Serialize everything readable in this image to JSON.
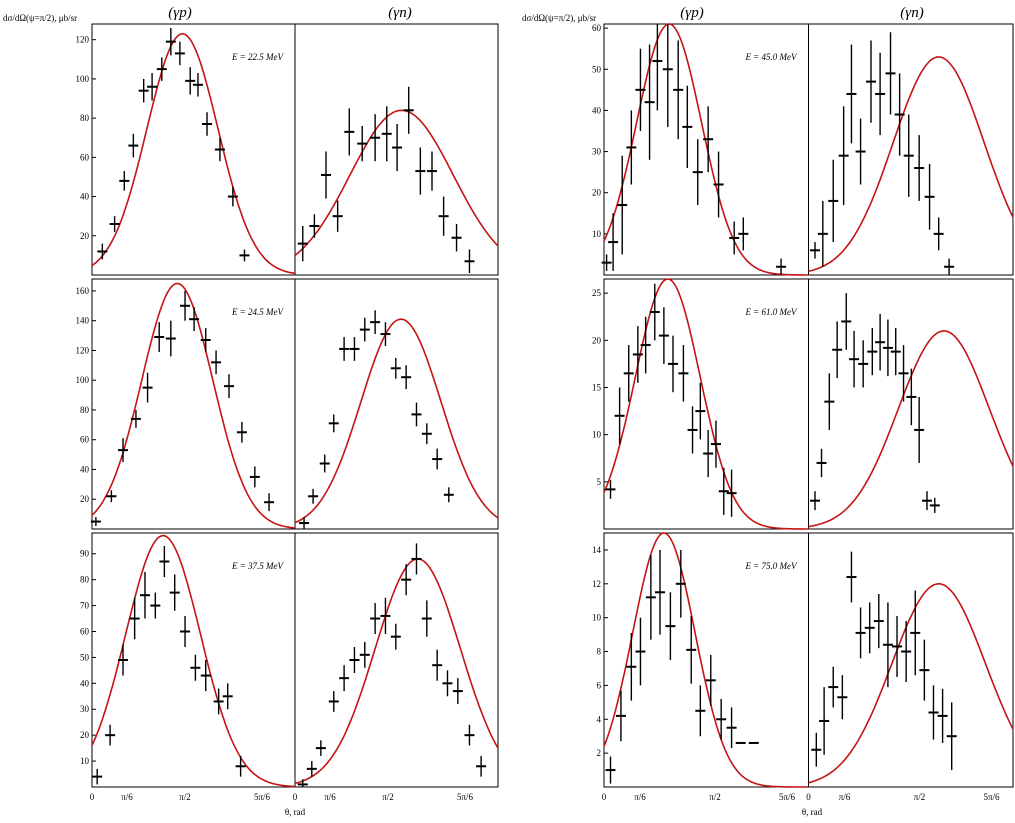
{
  "figure": {
    "ylabel": "dσ/dΩ(ψ=π/2), μb/sr",
    "xlabel": "θ, rad",
    "xticks": [
      "0",
      "π/6",
      "π/2",
      "5π/6"
    ],
    "column_headers": [
      "(γp)",
      "(γn)"
    ],
    "colors": {
      "curve": "#c41414",
      "data": "#000000",
      "frame": "#000000"
    }
  },
  "chart_data": [
    {
      "type": "scatter",
      "energy_label": "E = 22.5 MeV",
      "ylim": [
        0,
        128
      ],
      "yticks": [
        20,
        40,
        60,
        80,
        100,
        120
      ],
      "xlim": [
        0,
        3.14159
      ],
      "series": [
        {
          "channel": "(γp)",
          "model_peak": 123,
          "model_center": 1.4,
          "model_width": 0.55,
          "x": [
            0.16,
            0.35,
            0.5,
            0.64,
            0.8,
            0.93,
            1.08,
            1.22,
            1.36,
            1.52,
            1.64,
            1.78,
            1.98,
            2.18,
            2.36,
            2.6
          ],
          "y": [
            12,
            26,
            48,
            66,
            94,
            96,
            105,
            119,
            113,
            99,
            97,
            77,
            64,
            40,
            10,
            0
          ],
          "err": [
            4,
            4,
            5,
            6,
            6,
            7,
            6,
            7,
            6,
            7,
            6,
            6,
            6,
            5,
            3,
            0
          ]
        },
        {
          "channel": "(γn)",
          "model_peak": 84,
          "model_center": 1.65,
          "model_width": 0.8,
          "x": [
            0.12,
            0.3,
            0.48,
            0.66,
            0.84,
            1.04,
            1.24,
            1.42,
            1.58,
            1.76,
            1.94,
            2.12,
            2.3,
            2.5,
            2.7,
            2.9
          ],
          "y": [
            16,
            25,
            51,
            30,
            73,
            67,
            70,
            72,
            65,
            84,
            53,
            53,
            30,
            19,
            7,
            0
          ],
          "err": [
            9,
            6,
            12,
            8,
            12,
            9,
            12,
            14,
            12,
            12,
            12,
            10,
            10,
            7,
            6,
            0
          ]
        }
      ]
    },
    {
      "type": "scatter",
      "energy_label": "E = 24.5 MeV",
      "ylim": [
        0,
        168
      ],
      "yticks": [
        20,
        40,
        60,
        80,
        100,
        120,
        140,
        160
      ],
      "xlim": [
        0,
        3.14159
      ],
      "series": [
        {
          "channel": "(γp)",
          "model_peak": 165,
          "model_center": 1.32,
          "model_width": 0.55,
          "x": [
            0.06,
            0.3,
            0.48,
            0.68,
            0.86,
            1.04,
            1.22,
            1.44,
            1.58,
            1.76,
            1.92,
            2.12,
            2.32,
            2.52,
            2.74
          ],
          "y": [
            5,
            22,
            53,
            74,
            95,
            129,
            128,
            150,
            141,
            127,
            112,
            96,
            65,
            35,
            18
          ],
          "err": [
            3,
            4,
            8,
            6,
            10,
            10,
            12,
            10,
            8,
            8,
            8,
            8,
            7,
            7,
            6
          ]
        },
        {
          "channel": "(γn)",
          "model_peak": 141,
          "model_center": 1.64,
          "model_width": 0.62,
          "x": [
            0.14,
            0.28,
            0.46,
            0.6,
            0.76,
            0.92,
            1.08,
            1.24,
            1.4,
            1.56,
            1.72,
            1.88,
            2.04,
            2.2,
            2.38,
            2.56,
            2.74,
            2.92
          ],
          "y": [
            4,
            22,
            44,
            71,
            121,
            121,
            134,
            139,
            131,
            108,
            102,
            77,
            64,
            47,
            23,
            0,
            0,
            0
          ],
          "err": [
            4,
            5,
            6,
            6,
            8,
            8,
            8,
            8,
            8,
            7,
            8,
            8,
            7,
            7,
            5,
            0,
            0,
            0
          ]
        }
      ]
    },
    {
      "type": "scatter",
      "energy_label": "E = 37.5 MeV",
      "ylim": [
        0,
        98
      ],
      "yticks": [
        10,
        20,
        30,
        40,
        50,
        60,
        70,
        80,
        90
      ],
      "xlim": [
        0,
        3.14159
      ],
      "series": [
        {
          "channel": "(γp)",
          "model_peak": 97,
          "model_center": 1.1,
          "model_width": 0.58,
          "x": [
            0.08,
            0.28,
            0.48,
            0.66,
            0.82,
            0.98,
            1.12,
            1.28,
            1.44,
            1.6,
            1.76,
            1.96,
            2.1,
            2.3,
            2.46,
            2.62
          ],
          "y": [
            4,
            20,
            49,
            65,
            74,
            70,
            87,
            75,
            60,
            46,
            43,
            33,
            35,
            8,
            0,
            0
          ],
          "err": [
            3,
            4,
            6,
            8,
            9,
            5,
            6,
            7,
            6,
            5,
            6,
            5,
            5,
            4,
            0,
            0
          ]
        },
        {
          "channel": "(γn)",
          "model_peak": 88,
          "model_center": 1.9,
          "model_width": 0.66,
          "x": [
            0.12,
            0.26,
            0.4,
            0.6,
            0.76,
            0.92,
            1.08,
            1.24,
            1.4,
            1.56,
            1.72,
            1.88,
            2.04,
            2.2,
            2.36,
            2.52,
            2.7,
            2.88
          ],
          "y": [
            1,
            7,
            15,
            33,
            42,
            49,
            51,
            65,
            66,
            58,
            80,
            88,
            65,
            47,
            40,
            37,
            20,
            8
          ],
          "err": [
            2,
            3,
            3,
            4,
            5,
            5,
            5,
            6,
            7,
            5,
            6,
            6,
            7,
            6,
            5,
            5,
            4,
            4
          ]
        }
      ]
    },
    {
      "type": "scatter",
      "energy_label": "E = 45.0 MeV",
      "ylim": [
        0,
        61
      ],
      "yticks": [
        10,
        20,
        30,
        40,
        50,
        60
      ],
      "xlim": [
        0,
        3.14159
      ],
      "series": [
        {
          "channel": "(γp)",
          "model_peak": 61,
          "model_center": 1.0,
          "model_width": 0.5,
          "x": [
            0.04,
            0.14,
            0.28,
            0.42,
            0.56,
            0.7,
            0.82,
            0.98,
            1.14,
            1.28,
            1.44,
            1.6,
            1.76,
            2.0,
            2.14,
            2.72
          ],
          "y": [
            3,
            8,
            17,
            31,
            45,
            42,
            52,
            50,
            45,
            36,
            25,
            33,
            22,
            9,
            10,
            2
          ],
          "err": [
            2,
            7,
            12,
            9,
            10,
            14,
            12,
            14,
            12,
            10,
            8,
            8,
            8,
            4,
            4,
            2
          ]
        },
        {
          "channel": "(γn)",
          "model_peak": 53,
          "model_center": 2.0,
          "model_width": 0.7,
          "x": [
            0.1,
            0.22,
            0.38,
            0.54,
            0.66,
            0.8,
            0.96,
            1.1,
            1.26,
            1.4,
            1.54,
            1.7,
            1.86,
            2.0,
            2.16,
            2.32,
            2.48,
            2.62,
            2.74,
            2.9
          ],
          "y": [
            6,
            10,
            18,
            29,
            44,
            30,
            47,
            44,
            49,
            39,
            29,
            26,
            19,
            10,
            2,
            0,
            0,
            0,
            0,
            0
          ],
          "err": [
            2,
            8,
            10,
            12,
            12,
            8,
            10,
            10,
            10,
            10,
            10,
            8,
            8,
            4,
            2,
            0,
            0,
            0,
            0,
            0
          ]
        }
      ]
    },
    {
      "type": "scatter",
      "energy_label": "E = 61.0 MeV",
      "ylim": [
        0,
        26.5
      ],
      "yticks": [
        5,
        10,
        15,
        20,
        25
      ],
      "xlim": [
        0,
        3.14159
      ],
      "series": [
        {
          "channel": "(γp)",
          "model_peak": 26.5,
          "model_center": 0.98,
          "model_width": 0.5,
          "x": [
            0.1,
            0.24,
            0.38,
            0.52,
            0.64,
            0.78,
            0.92,
            1.06,
            1.22,
            1.36,
            1.48,
            1.6,
            1.72,
            1.84,
            1.96,
            2.12,
            2.3
          ],
          "y": [
            4.2,
            12,
            16.5,
            18.5,
            19.5,
            23,
            20.5,
            17.5,
            16.5,
            10.5,
            12.5,
            8,
            9,
            4,
            3.8,
            0,
            0
          ],
          "err": [
            1,
            3,
            3,
            3,
            3,
            3,
            3,
            3,
            3,
            2.5,
            3,
            2.5,
            2.5,
            2.5,
            2.5,
            0,
            0
          ],
          "count": 17
        },
        {
          "channel": "(γn)",
          "model_peak": 21,
          "model_center": 2.08,
          "model_width": 0.7,
          "x": [
            0.1,
            0.2,
            0.32,
            0.44,
            0.58,
            0.7,
            0.84,
            0.98,
            1.1,
            1.22,
            1.34,
            1.46,
            1.58,
            1.7,
            1.82,
            1.94,
            2.12,
            2.26
          ],
          "y": [
            3,
            7,
            13.5,
            19,
            22,
            18,
            17.5,
            18.8,
            19.8,
            19.2,
            18.8,
            16.5,
            14,
            10.5,
            3,
            2.5,
            0,
            0
          ],
          "err": [
            1,
            1.5,
            3,
            3,
            3,
            3,
            2.5,
            2.5,
            3,
            3,
            2.5,
            3,
            3,
            3.5,
            1,
            0.8,
            0,
            0
          ]
        }
      ]
    },
    {
      "type": "scatter",
      "energy_label": "E = 75.0 MeV",
      "ylim": [
        0,
        15
      ],
      "yticks": [
        2,
        4,
        6,
        8,
        10,
        12,
        14
      ],
      "xlim": [
        0,
        3.14159
      ],
      "series": [
        {
          "channel": "(γp)",
          "model_peak": 15,
          "model_center": 0.92,
          "model_width": 0.48,
          "x": [
            0.1,
            0.26,
            0.42,
            0.56,
            0.72,
            0.86,
            1.02,
            1.18,
            1.34,
            1.48,
            1.64,
            1.8,
            1.96,
            2.1,
            2.3
          ],
          "y": [
            1,
            4.2,
            7.1,
            8,
            11.2,
            11.5,
            9.5,
            12,
            8.1,
            4.5,
            6.3,
            4,
            3.5,
            2.6,
            2.6
          ],
          "err": [
            0.8,
            1.5,
            2,
            2,
            2.5,
            2.5,
            2,
            2,
            2,
            1.5,
            1.5,
            1.2,
            1.2,
            0,
            0
          ]
        },
        {
          "channel": "(γn)",
          "model_peak": 12,
          "model_center": 2.0,
          "model_width": 0.72,
          "x": [
            0.12,
            0.24,
            0.38,
            0.52,
            0.66,
            0.8,
            0.94,
            1.08,
            1.22,
            1.36,
            1.5,
            1.64,
            1.78,
            1.92,
            2.06,
            2.2,
            2.34
          ],
          "y": [
            2.2,
            3.9,
            5.9,
            5.3,
            12.4,
            9.1,
            9.4,
            9.8,
            8.4,
            8.3,
            8,
            9.1,
            6.9,
            4.4,
            4.2,
            3,
            0
          ],
          "err": [
            1,
            2,
            1.2,
            1.3,
            1.5,
            1.5,
            1.5,
            1.6,
            2.5,
            1.8,
            1.8,
            2.5,
            1.8,
            1.6,
            1.6,
            2,
            0
          ]
        }
      ]
    }
  ]
}
